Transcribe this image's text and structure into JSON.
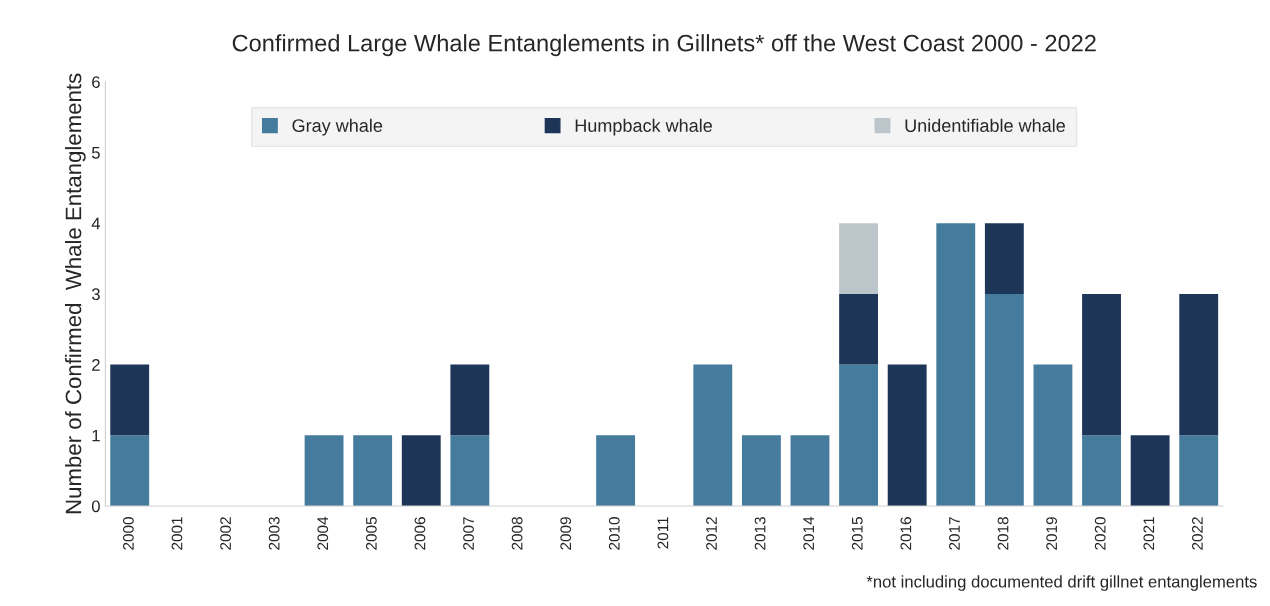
{
  "chart_data": {
    "type": "bar",
    "title": "Confirmed Large Whale Entanglements in Gillnets* off the West Coast 2000 - 2022",
    "ylabel": "Number of Confirmed  Whale Entanglements",
    "categories": [
      "2000",
      "2001",
      "2002",
      "2003",
      "2004",
      "2005",
      "2006",
      "2007",
      "2008",
      "2009",
      "2010",
      "2011",
      "2012",
      "2013",
      "2014",
      "2015",
      "2016",
      "2017",
      "2018",
      "2019",
      "2020",
      "2021",
      "2022"
    ],
    "series": [
      {
        "name": "Gray whale",
        "color": "#457b9d",
        "values": [
          1,
          0,
          0,
          0,
          1,
          1,
          0,
          1,
          0,
          0,
          1,
          0,
          2,
          1,
          1,
          2,
          0,
          4,
          3,
          2,
          1,
          0,
          1
        ]
      },
      {
        "name": "Humpback whale",
        "color": "#1d3557",
        "values": [
          1,
          0,
          0,
          0,
          0,
          0,
          1,
          1,
          0,
          0,
          0,
          0,
          0,
          0,
          0,
          1,
          2,
          0,
          1,
          0,
          2,
          1,
          2
        ]
      },
      {
        "name": "Unidentifiable whale",
        "color": "#bcc5c9",
        "values": [
          0,
          0,
          0,
          0,
          0,
          0,
          0,
          0,
          0,
          0,
          0,
          0,
          0,
          0,
          0,
          1,
          0,
          0,
          0,
          0,
          0,
          0,
          0
        ]
      }
    ],
    "stacked": true,
    "ylim": [
      0,
      6
    ],
    "yticks": [
      0,
      1,
      2,
      3,
      4,
      5,
      6
    ],
    "grid": false,
    "legend": "top",
    "annotations": [
      "*not including documented drift gillnet entanglements"
    ]
  }
}
